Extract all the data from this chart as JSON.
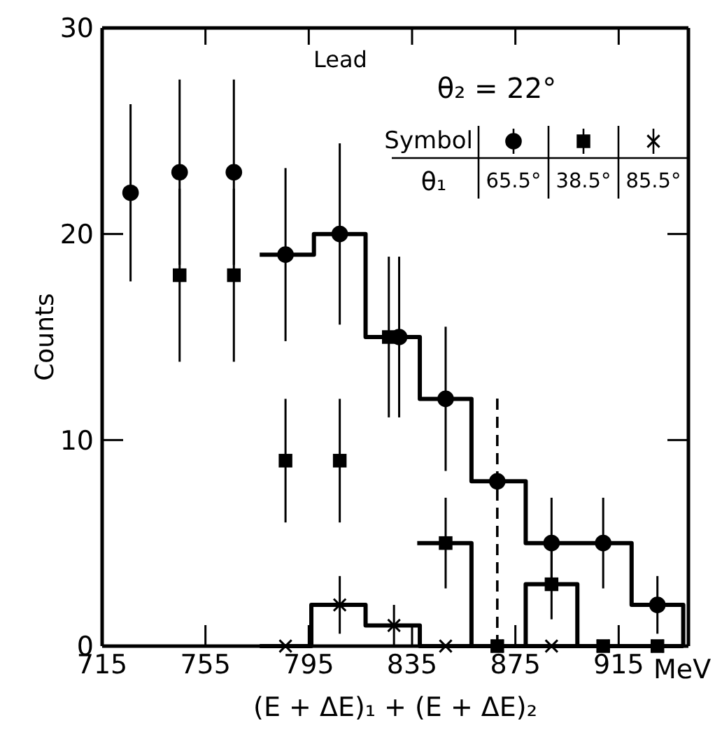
{
  "chart_data": {
    "type": "scatter",
    "xlabel": "(E + ΔE)₁ + (E + ΔE)₂",
    "ylabel": "Counts",
    "legend_title": "θ₁",
    "annotations": [
      "Lead",
      "θ₂ = 22°",
      "Symbol",
      "MeV"
    ],
    "xlim": [
      715,
      942
    ],
    "xticks": [
      715,
      755,
      795,
      835,
      875,
      915
    ],
    "ylim": [
      0,
      30
    ],
    "yticks": [
      0,
      10,
      20,
      30
    ],
    "grid": false,
    "legend": "top right",
    "series": [
      {
        "name": "65.5°",
        "marker": "circle",
        "color": "#000000",
        "x": [
          726,
          745,
          766,
          786,
          807,
          830,
          848,
          868,
          889,
          909,
          930
        ],
        "values": [
          22,
          23,
          23,
          19,
          20,
          15,
          12,
          8,
          5,
          5,
          2
        ],
        "errors": [
          4.3,
          4.5,
          4.5,
          4.2,
          4.4,
          3.9,
          3.5,
          null,
          2.2,
          2.2,
          1.4
        ]
      },
      {
        "name": "38.5°",
        "marker": "square",
        "color": "#000000",
        "x": [
          745,
          766,
          786,
          807,
          826,
          848,
          868,
          889,
          909,
          930
        ],
        "values": [
          18,
          18,
          9,
          9,
          15,
          5,
          0,
          3,
          0,
          0
        ],
        "errors": [
          4.2,
          4.2,
          3,
          3,
          3.9,
          2.2,
          null,
          1.7,
          null,
          null
        ]
      },
      {
        "name": "85.5°",
        "marker": "cross",
        "color": "#000000",
        "x": [
          786,
          807,
          828,
          848,
          868,
          889,
          909,
          930
        ],
        "values": [
          0,
          2,
          1,
          0,
          0,
          0,
          0,
          0
        ],
        "errors": [
          null,
          1.4,
          1,
          null,
          null,
          null,
          null,
          null
        ]
      },
      {
        "type": "step",
        "color": "#000000",
        "line_style": "solid",
        "x": [
          776,
          797,
          817,
          838,
          858,
          879,
          899,
          920,
          940
        ],
        "values": [
          19,
          20,
          15,
          12,
          8,
          5,
          5,
          2,
          0
        ]
      },
      {
        "type": "step",
        "color": "#000000",
        "line_style": "solid",
        "x": [
          837,
          858,
          879,
          899,
          940
        ],
        "values": [
          5,
          0,
          3,
          0,
          0
        ]
      },
      {
        "type": "step",
        "color": "#000000",
        "line_style": "solid",
        "x": [
          776,
          796,
          817,
          838,
          940
        ],
        "values": [
          0,
          2,
          1,
          0,
          0
        ]
      },
      {
        "type": "line",
        "color": "#000000",
        "line_style": "dashed",
        "x": [
          868,
          868
        ],
        "values": [
          0,
          12.2
        ]
      }
    ]
  }
}
